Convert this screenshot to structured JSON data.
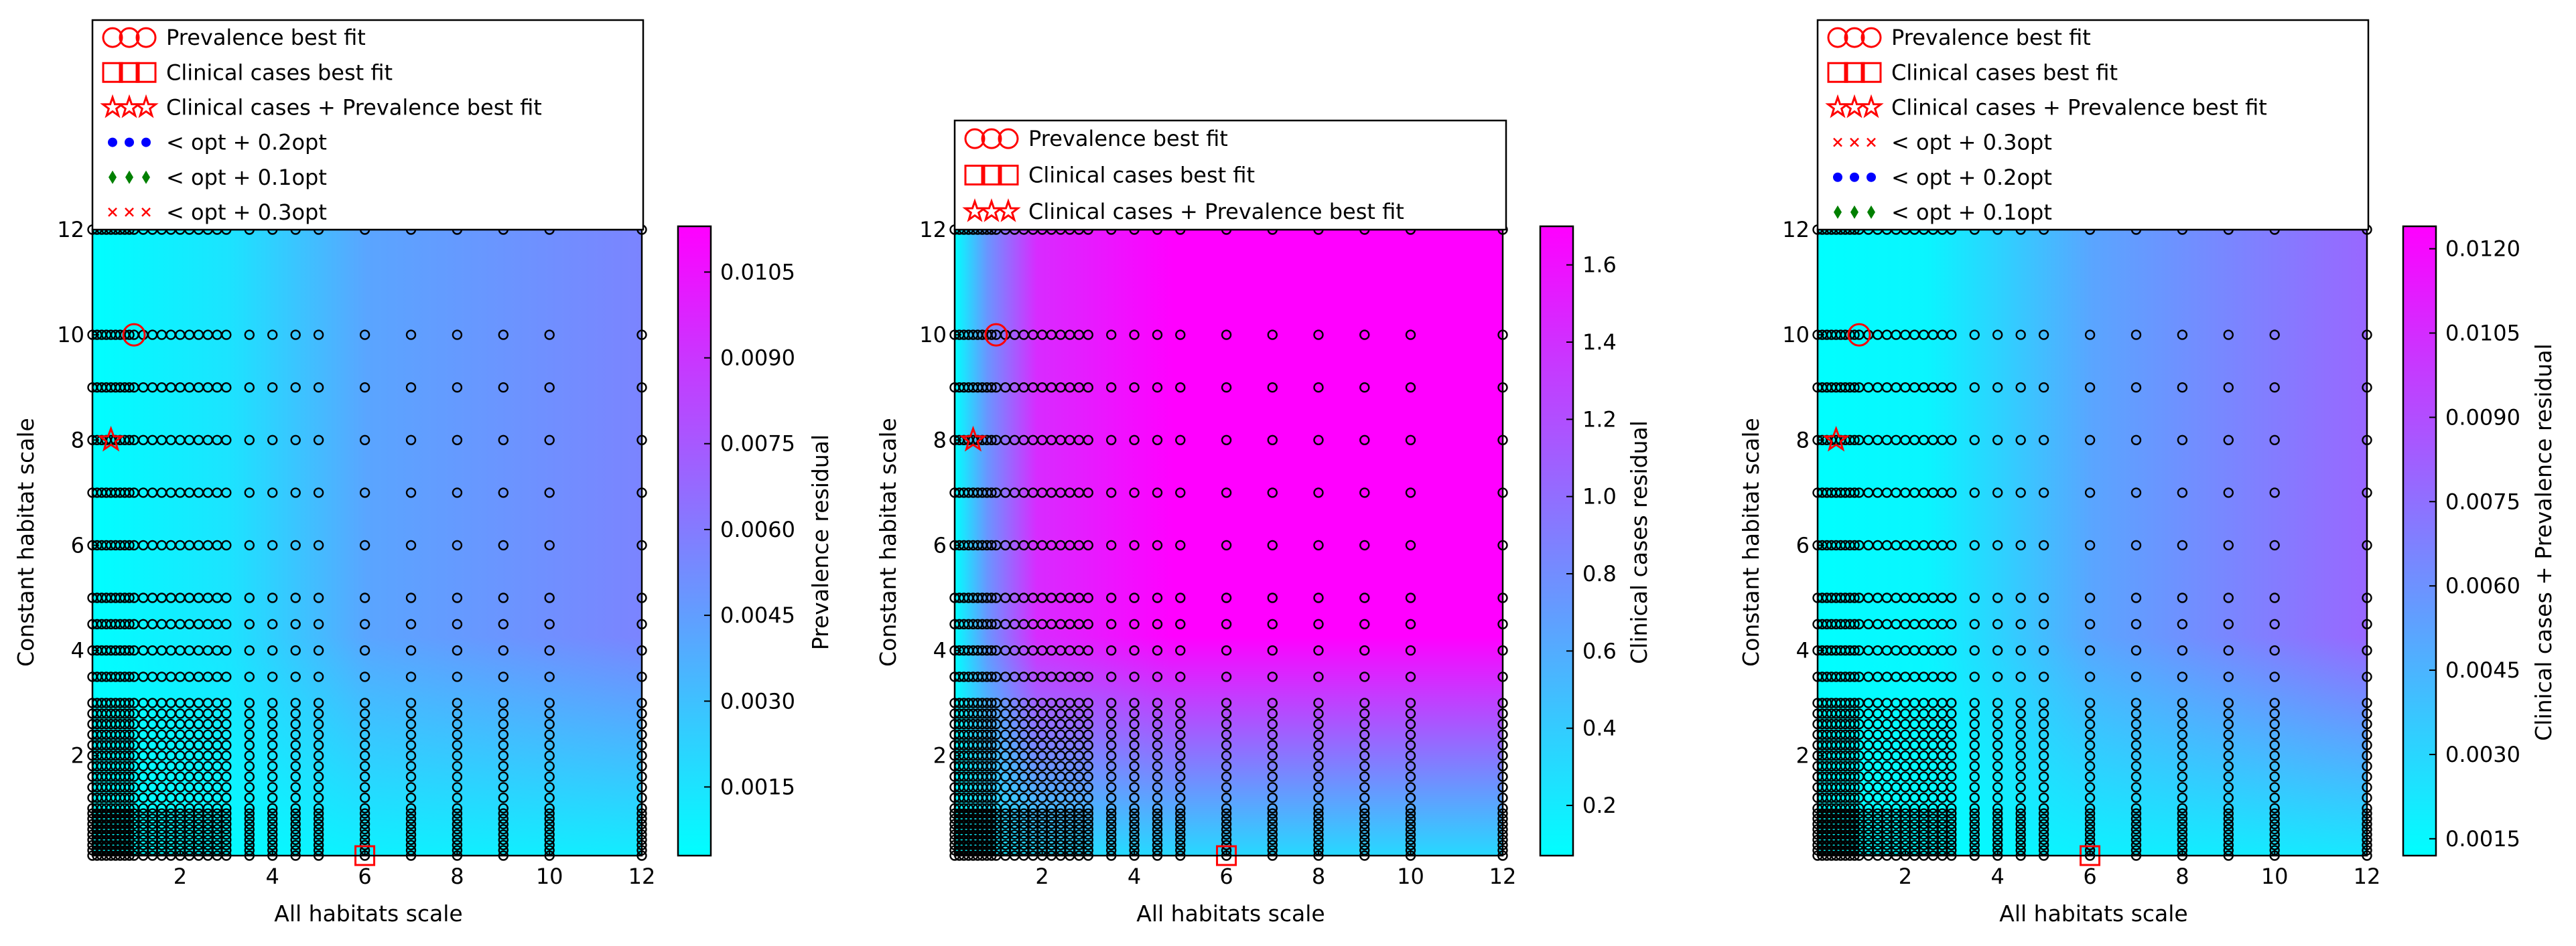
{
  "chart_data": [
    {
      "type": "heatmap",
      "xlabel": "All habitats scale",
      "ylabel": "Constant habitat scale",
      "xticks": [
        "2",
        "4",
        "6",
        "8",
        "10",
        "12"
      ],
      "yticks": [
        "2",
        "4",
        "6",
        "8",
        "10",
        "12"
      ],
      "xlim": [
        0.1,
        12
      ],
      "ylim": [
        0.1,
        12
      ],
      "colorbar": {
        "label": "Prevalence residual",
        "ticks": [
          "0.0015",
          "0.0030",
          "0.0045",
          "0.0060",
          "0.0075",
          "0.0090",
          "0.0105"
        ],
        "range": [
          0.0003,
          0.0113
        ],
        "colors": [
          "#00ffff",
          "#ff00ff"
        ]
      },
      "legend": {
        "position": "above plot",
        "entries": [
          {
            "marker": "circle-open",
            "color": "#ff0000",
            "label": "Prevalence best fit"
          },
          {
            "marker": "square-open",
            "color": "#ff0000",
            "label": "Clinical cases best fit"
          },
          {
            "marker": "star-open",
            "color": "#ff0000",
            "label": "Clinical cases + Prevalence best fit"
          },
          {
            "marker": "dot",
            "color": "#0000ff",
            "label": "< opt + 0.2opt"
          },
          {
            "marker": "diamond",
            "color": "#008000",
            "label": "< opt + 0.1opt"
          },
          {
            "marker": "x",
            "color": "#ff0000",
            "label": "< opt + 0.3opt"
          }
        ]
      },
      "best_fits": {
        "prevalence": [
          1,
          10
        ],
        "clinical_cases": [
          6,
          0.1
        ],
        "combined": [
          0.5,
          8
        ]
      }
    },
    {
      "type": "heatmap",
      "xlabel": "All habitats scale",
      "ylabel": "Constant habitat scale",
      "xticks": [
        "2",
        "4",
        "6",
        "8",
        "10",
        "12"
      ],
      "yticks": [
        "2",
        "4",
        "6",
        "8",
        "10",
        "12"
      ],
      "xlim": [
        0.1,
        12
      ],
      "ylim": [
        0.1,
        12
      ],
      "colorbar": {
        "label": "Clinical cases residual",
        "ticks": [
          "0.2",
          "0.4",
          "0.6",
          "0.8",
          "1.0",
          "1.2",
          "1.4",
          "1.6"
        ],
        "range": [
          0.07,
          1.7
        ],
        "colors": [
          "#00ffff",
          "#ff00ff"
        ]
      },
      "legend": {
        "position": "above plot",
        "entries": [
          {
            "marker": "circle-open",
            "color": "#ff0000",
            "label": "Prevalence best fit"
          },
          {
            "marker": "square-open",
            "color": "#ff0000",
            "label": "Clinical cases best fit"
          },
          {
            "marker": "star-open",
            "color": "#ff0000",
            "label": "Clinical cases + Prevalence best fit"
          }
        ]
      },
      "best_fits": {
        "prevalence": [
          1,
          10
        ],
        "clinical_cases": [
          6,
          0.1
        ],
        "combined": [
          0.5,
          8
        ]
      }
    },
    {
      "type": "heatmap",
      "xlabel": "All habitats scale",
      "ylabel": "Constant habitat scale",
      "xticks": [
        "2",
        "4",
        "6",
        "8",
        "10",
        "12"
      ],
      "yticks": [
        "2",
        "4",
        "6",
        "8",
        "10",
        "12"
      ],
      "xlim": [
        0.1,
        12
      ],
      "ylim": [
        0.1,
        12
      ],
      "colorbar": {
        "label": "Clinical cases + Prevalence residual",
        "ticks": [
          "0.0015",
          "0.0030",
          "0.0045",
          "0.0060",
          "0.0075",
          "0.0090",
          "0.0105",
          "0.0120"
        ],
        "range": [
          0.0012,
          0.0124
        ],
        "colors": [
          "#00ffff",
          "#ff00ff"
        ]
      },
      "legend": {
        "position": "above plot",
        "entries": [
          {
            "marker": "circle-open",
            "color": "#ff0000",
            "label": "Prevalence best fit"
          },
          {
            "marker": "square-open",
            "color": "#ff0000",
            "label": "Clinical cases best fit"
          },
          {
            "marker": "star-open",
            "color": "#ff0000",
            "label": "Clinical cases + Prevalence best fit"
          },
          {
            "marker": "x",
            "color": "#ff0000",
            "label": "< opt + 0.3opt"
          },
          {
            "marker": "dot",
            "color": "#0000ff",
            "label": "< opt + 0.2opt"
          },
          {
            "marker": "diamond",
            "color": "#008000",
            "label": "< opt + 0.1opt"
          }
        ]
      },
      "best_fits": {
        "prevalence": [
          1,
          10
        ],
        "clinical_cases": [
          6,
          0.1
        ],
        "combined": [
          0.5,
          8
        ]
      }
    }
  ],
  "sample_grid": {
    "x_values": [
      0.1,
      0.2,
      0.3,
      0.4,
      0.5,
      0.6,
      0.7,
      0.8,
      0.9,
      1.0,
      1.2,
      1.4,
      1.6,
      1.8,
      2.0,
      2.2,
      2.4,
      2.6,
      2.8,
      3.0,
      3.5,
      4.0,
      4.5,
      5.0,
      6.0,
      7.0,
      8.0,
      9.0,
      10.0,
      12.0
    ],
    "y_values": [
      0.1,
      0.2,
      0.3,
      0.4,
      0.5,
      0.6,
      0.7,
      0.8,
      0.9,
      1.0,
      1.2,
      1.4,
      1.6,
      1.8,
      2.0,
      2.2,
      2.4,
      2.6,
      2.8,
      3.0,
      3.5,
      4.0,
      4.5,
      5.0,
      6.0,
      7.0,
      8.0,
      9.0,
      10.0,
      12.0
    ],
    "marker": "circle-open",
    "color": "#000000"
  }
}
